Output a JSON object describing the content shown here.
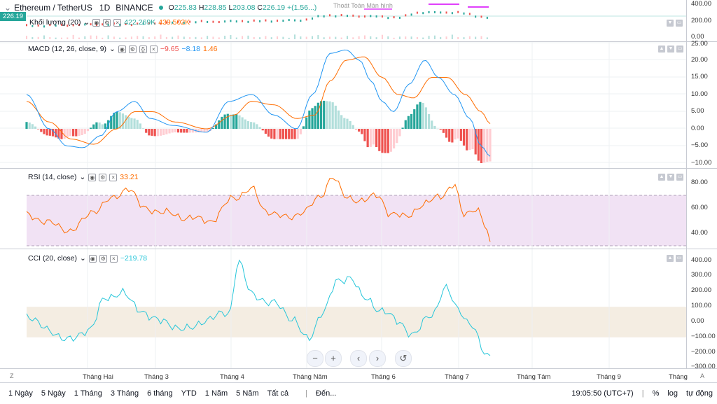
{
  "colors": {
    "up": "#26a69a",
    "up_light": "#b2dfdb",
    "down": "#ef5350",
    "down_light": "#ffcdd2",
    "macd": "#2196f3",
    "signal": "#ff6d00",
    "rsi": "#ff6d00",
    "cci": "#26c6da",
    "rsi_band": "#e1bee7",
    "cci_band": "#efe6d5",
    "price_badge": "#26a69a"
  },
  "header": {
    "symbol": "Ethereum / TetherUS",
    "interval": "1D",
    "exchange": "BINANCE",
    "o_label": "O",
    "o": "225.83",
    "h_label": "H",
    "h": "228.85",
    "l_label": "L",
    "l": "203.08",
    "c_label": "C",
    "c": "226.19",
    "change": "+(1.56...)",
    "tooltip": "Thoát Toàn Màn hình"
  },
  "price_axis": {
    "ticks": [
      "400.00",
      "200.00",
      "0.00"
    ],
    "last_price": "226.19"
  },
  "volume": {
    "name": "Khối lượng (20)",
    "v1": "422.269K",
    "v2": "439.502K"
  },
  "macd": {
    "name": "MACD (12, 26, close, 9)",
    "hist": "−9.65",
    "macd": "−8.18",
    "signal": "1.46",
    "ticks": [
      "25.00",
      "20.00",
      "15.00",
      "10.00",
      "5.00",
      "0.00",
      "−5.00",
      "−10.00"
    ]
  },
  "rsi": {
    "name": "RSI (14, close)",
    "value": "33.21",
    "ticks": [
      "80.00",
      "60.00",
      "40.00"
    ]
  },
  "cci": {
    "name": "CCI (20, close)",
    "value": "−219.78",
    "ticks": [
      "400.00",
      "300.00",
      "200.00",
      "100.00",
      "0.00",
      "−100.00",
      "−200.00",
      "−300.00"
    ]
  },
  "time_axis": {
    "labels": [
      "Tháng Hai",
      "Tháng 3",
      "Tháng 4",
      "Tháng Năm",
      "Tháng 6",
      "Tháng 7",
      "Tháng Tám",
      "Tháng 9",
      "Tháng"
    ]
  },
  "corner": {
    "left": "Z",
    "right": "A"
  },
  "bottombar": {
    "ranges": [
      "1 Ngày",
      "5 Ngày",
      "1 Tháng",
      "3 Tháng",
      "6 tháng",
      "YTD",
      "1 Năm",
      "5 Năm",
      "Tất cả"
    ],
    "goto": "Đến...",
    "clock": "19:05:50 (UTC+7)",
    "percent": "%",
    "log": "log",
    "auto": "tự động"
  },
  "nav": {
    "zoom_out": "−",
    "zoom_in": "+",
    "back": "‹",
    "forward": "›",
    "reset": "↺"
  }
}
